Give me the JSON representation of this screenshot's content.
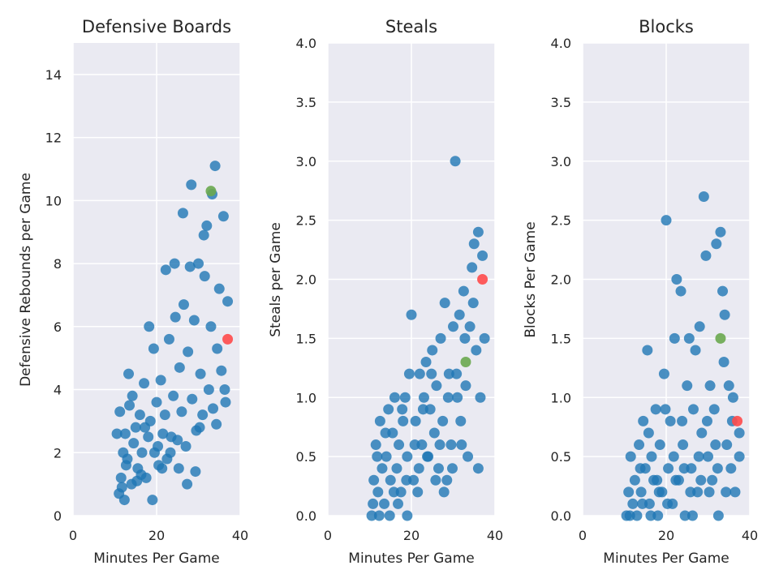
{
  "colors": {
    "background": "#ffffff",
    "plot_bg": "#eaeaf2",
    "grid": "#ffffff",
    "points": "#1f77b4",
    "highlight_red": "#ff4a4a",
    "highlight_green": "#6aa84f",
    "text": "#262626"
  },
  "chart_data": [
    {
      "type": "scatter",
      "title": "Defensive Boards",
      "xlabel": "Minutes Per Game",
      "ylabel": "Defensive Rebounds per Game",
      "xlim": [
        0,
        40
      ],
      "ylim": [
        0,
        15
      ],
      "xticks": [
        0,
        20,
        40
      ],
      "yticks": [
        0,
        2,
        4,
        6,
        8,
        10,
        12,
        14
      ],
      "grid": true,
      "highlights": [
        {
          "x": 37,
          "y": 5.6,
          "color": "red"
        },
        {
          "x": 33,
          "y": 10.3,
          "color": "green"
        }
      ],
      "points": [
        [
          11.0,
          0.7
        ],
        [
          11.5,
          1.2
        ],
        [
          12.0,
          2.0
        ],
        [
          12.5,
          2.6
        ],
        [
          13.0,
          1.8
        ],
        [
          13.5,
          3.5
        ],
        [
          14.0,
          1.0
        ],
        [
          14.5,
          2.3
        ],
        [
          15.0,
          2.8
        ],
        [
          15.5,
          1.5
        ],
        [
          16.0,
          3.2
        ],
        [
          16.5,
          2.0
        ],
        [
          17.0,
          4.2
        ],
        [
          17.5,
          1.2
        ],
        [
          18.0,
          2.5
        ],
        [
          18.5,
          3.0
        ],
        [
          19.0,
          0.5
        ],
        [
          19.5,
          2.0
        ],
        [
          20.0,
          3.6
        ],
        [
          20.5,
          1.6
        ],
        [
          21.0,
          4.3
        ],
        [
          21.5,
          2.6
        ],
        [
          22.0,
          3.2
        ],
        [
          22.5,
          1.8
        ],
        [
          23.0,
          5.6
        ],
        [
          23.5,
          2.5
        ],
        [
          24.0,
          3.8
        ],
        [
          24.5,
          6.3
        ],
        [
          25.0,
          2.4
        ],
        [
          25.5,
          4.7
        ],
        [
          26.0,
          3.3
        ],
        [
          26.5,
          6.7
        ],
        [
          27.0,
          2.2
        ],
        [
          27.5,
          5.2
        ],
        [
          28.0,
          7.9
        ],
        [
          28.5,
          3.7
        ],
        [
          29.0,
          6.2
        ],
        [
          29.5,
          2.7
        ],
        [
          30.0,
          8.0
        ],
        [
          30.5,
          4.5
        ],
        [
          31.0,
          3.2
        ],
        [
          31.5,
          7.6
        ],
        [
          32.0,
          9.2
        ],
        [
          32.5,
          4.0
        ],
        [
          33.0,
          6.0
        ],
        [
          33.5,
          3.4
        ],
        [
          34.0,
          11.1
        ],
        [
          34.5,
          5.3
        ],
        [
          35.0,
          7.2
        ],
        [
          35.5,
          4.6
        ],
        [
          36.0,
          9.5
        ],
        [
          36.5,
          3.6
        ],
        [
          37.0,
          6.8
        ],
        [
          10.5,
          2.6
        ],
        [
          11.2,
          3.3
        ],
        [
          12.3,
          0.5
        ],
        [
          13.3,
          4.5
        ],
        [
          14.2,
          3.8
        ],
        [
          16.3,
          1.3
        ],
        [
          17.2,
          2.8
        ],
        [
          18.2,
          6.0
        ],
        [
          19.3,
          5.3
        ],
        [
          20.3,
          2.2
        ],
        [
          22.2,
          7.8
        ],
        [
          24.3,
          8.0
        ],
        [
          26.3,
          9.6
        ],
        [
          28.3,
          10.5
        ],
        [
          31.3,
          8.9
        ],
        [
          33.3,
          10.2
        ],
        [
          21.3,
          1.5
        ],
        [
          23.3,
          2.0
        ],
        [
          25.3,
          1.5
        ],
        [
          27.3,
          1.0
        ],
        [
          29.3,
          1.4
        ],
        [
          30.3,
          2.8
        ],
        [
          34.3,
          2.9
        ],
        [
          36.3,
          4.0
        ],
        [
          15.3,
          1.1
        ],
        [
          12.7,
          1.6
        ],
        [
          11.7,
          0.9
        ]
      ]
    },
    {
      "type": "scatter",
      "title": "Steals",
      "xlabel": "Minutes Per Game",
      "ylabel": "Steals per Game",
      "xlim": [
        0,
        40
      ],
      "ylim": [
        0,
        4.0
      ],
      "xticks": [
        0,
        20,
        40
      ],
      "yticks": [
        0.0,
        0.5,
        1.0,
        1.5,
        2.0,
        2.5,
        3.0,
        3.5,
        4.0
      ],
      "grid": true,
      "highlights": [
        {
          "x": 37,
          "y": 2.0,
          "color": "red"
        },
        {
          "x": 33,
          "y": 1.3,
          "color": "green"
        }
      ],
      "points": [
        [
          10.5,
          0.0
        ],
        [
          11.0,
          0.3
        ],
        [
          11.5,
          0.6
        ],
        [
          12.0,
          0.2
        ],
        [
          12.5,
          0.8
        ],
        [
          13.0,
          0.4
        ],
        [
          13.5,
          0.1
        ],
        [
          14.0,
          0.5
        ],
        [
          14.5,
          0.9
        ],
        [
          15.0,
          0.3
        ],
        [
          15.5,
          0.7
        ],
        [
          16.0,
          1.0
        ],
        [
          16.5,
          0.4
        ],
        [
          17.0,
          0.6
        ],
        [
          17.5,
          0.2
        ],
        [
          18.0,
          0.8
        ],
        [
          18.5,
          1.0
        ],
        [
          19.0,
          0.5
        ],
        [
          19.5,
          1.2
        ],
        [
          20.0,
          1.7
        ],
        [
          20.5,
          0.3
        ],
        [
          21.0,
          0.8
        ],
        [
          21.5,
          0.2
        ],
        [
          22.0,
          1.2
        ],
        [
          22.5,
          0.6
        ],
        [
          23.0,
          1.0
        ],
        [
          23.5,
          1.3
        ],
        [
          24.0,
          0.5
        ],
        [
          24.5,
          0.9
        ],
        [
          25.0,
          1.4
        ],
        [
          25.5,
          0.7
        ],
        [
          26.0,
          1.1
        ],
        [
          26.5,
          0.4
        ],
        [
          27.0,
          1.5
        ],
        [
          27.5,
          0.8
        ],
        [
          28.0,
          1.8
        ],
        [
          28.5,
          0.3
        ],
        [
          29.0,
          1.2
        ],
        [
          29.5,
          0.6
        ],
        [
          30.0,
          1.6
        ],
        [
          30.5,
          3.0
        ],
        [
          31.0,
          1.0
        ],
        [
          31.5,
          1.7
        ],
        [
          32.0,
          0.6
        ],
        [
          32.5,
          1.9
        ],
        [
          33.0,
          1.1
        ],
        [
          33.5,
          0.5
        ],
        [
          34.0,
          1.6
        ],
        [
          34.5,
          2.1
        ],
        [
          35.0,
          2.3
        ],
        [
          35.5,
          1.4
        ],
        [
          36.0,
          2.4
        ],
        [
          36.5,
          1.0
        ],
        [
          37.0,
          2.2
        ],
        [
          37.5,
          1.5
        ],
        [
          36.0,
          0.4
        ],
        [
          12.3,
          0.0
        ],
        [
          19.0,
          0.0
        ],
        [
          10.8,
          0.1
        ],
        [
          11.8,
          0.5
        ],
        [
          13.8,
          0.7
        ],
        [
          15.8,
          0.2
        ],
        [
          17.8,
          0.9
        ],
        [
          20.8,
          0.6
        ],
        [
          22.8,
          0.9
        ],
        [
          24.8,
          1.2
        ],
        [
          26.8,
          0.6
        ],
        [
          28.8,
          1.0
        ],
        [
          30.8,
          1.2
        ],
        [
          32.8,
          1.5
        ],
        [
          34.8,
          1.8
        ],
        [
          14.8,
          0.0
        ],
        [
          16.8,
          0.1
        ],
        [
          18.8,
          0.3
        ],
        [
          21.8,
          0.4
        ],
        [
          23.8,
          0.5
        ],
        [
          25.8,
          0.3
        ],
        [
          27.8,
          0.2
        ],
        [
          29.8,
          0.4
        ],
        [
          31.8,
          0.8
        ]
      ]
    },
    {
      "type": "scatter",
      "title": "Blocks",
      "xlabel": "Minutes Per Game",
      "ylabel": "Blocks Per Game",
      "xlim": [
        0,
        40
      ],
      "ylim": [
        0,
        4.0
      ],
      "xticks": [
        0,
        20,
        40
      ],
      "yticks": [
        0.0,
        0.5,
        1.0,
        1.5,
        2.0,
        2.5,
        3.0,
        3.5,
        4.0
      ],
      "grid": true,
      "highlights": [
        {
          "x": 37,
          "y": 0.8,
          "color": "red"
        },
        {
          "x": 33,
          "y": 1.5,
          "color": "green"
        }
      ],
      "points": [
        [
          10.5,
          0.0
        ],
        [
          11.0,
          0.2
        ],
        [
          11.5,
          0.5
        ],
        [
          12.0,
          0.1
        ],
        [
          12.5,
          0.3
        ],
        [
          13.0,
          0.0
        ],
        [
          13.5,
          0.6
        ],
        [
          14.0,
          0.2
        ],
        [
          14.5,
          0.8
        ],
        [
          15.0,
          0.4
        ],
        [
          15.5,
          1.4
        ],
        [
          16.0,
          0.1
        ],
        [
          16.5,
          0.5
        ],
        [
          17.0,
          0.3
        ],
        [
          17.5,
          0.9
        ],
        [
          18.0,
          0.0
        ],
        [
          18.5,
          0.6
        ],
        [
          19.0,
          0.2
        ],
        [
          19.5,
          1.2
        ],
        [
          20.0,
          2.5
        ],
        [
          20.5,
          0.4
        ],
        [
          21.0,
          0.8
        ],
        [
          21.5,
          0.1
        ],
        [
          22.0,
          1.5
        ],
        [
          22.5,
          2.0
        ],
        [
          23.0,
          0.3
        ],
        [
          23.5,
          1.9
        ],
        [
          24.0,
          0.6
        ],
        [
          24.5,
          0.0
        ],
        [
          25.0,
          1.1
        ],
        [
          25.5,
          1.5
        ],
        [
          26.0,
          0.4
        ],
        [
          26.5,
          0.9
        ],
        [
          27.0,
          1.4
        ],
        [
          27.5,
          0.2
        ],
        [
          28.0,
          1.6
        ],
        [
          28.5,
          0.7
        ],
        [
          29.0,
          2.7
        ],
        [
          29.5,
          2.2
        ],
        [
          30.0,
          0.5
        ],
        [
          30.5,
          1.1
        ],
        [
          31.0,
          0.3
        ],
        [
          31.5,
          0.9
        ],
        [
          32.0,
          2.3
        ],
        [
          32.5,
          0.0
        ],
        [
          33.0,
          2.4
        ],
        [
          33.5,
          1.9
        ],
        [
          34.0,
          1.7
        ],
        [
          34.5,
          0.6
        ],
        [
          35.0,
          1.1
        ],
        [
          35.5,
          0.4
        ],
        [
          36.0,
          1.0
        ],
        [
          36.5,
          0.2
        ],
        [
          37.5,
          0.7
        ],
        [
          37.5,
          0.5
        ],
        [
          13.8,
          0.4
        ],
        [
          15.8,
          0.7
        ],
        [
          17.8,
          0.3
        ],
        [
          19.8,
          0.9
        ],
        [
          21.8,
          0.5
        ],
        [
          23.8,
          0.8
        ],
        [
          25.8,
          0.2
        ],
        [
          27.8,
          0.5
        ],
        [
          29.8,
          0.8
        ],
        [
          31.8,
          0.6
        ],
        [
          33.8,
          1.3
        ],
        [
          35.8,
          0.8
        ],
        [
          11.3,
          0.0
        ],
        [
          14.3,
          0.1
        ],
        [
          16.3,
          0.0
        ],
        [
          18.3,
          0.2
        ],
        [
          20.3,
          0.1
        ],
        [
          22.3,
          0.3
        ],
        [
          24.3,
          0.4
        ],
        [
          26.3,
          0.0
        ],
        [
          28.3,
          0.3
        ],
        [
          30.3,
          0.2
        ],
        [
          32.3,
          0.4
        ],
        [
          34.3,
          0.2
        ]
      ]
    }
  ]
}
